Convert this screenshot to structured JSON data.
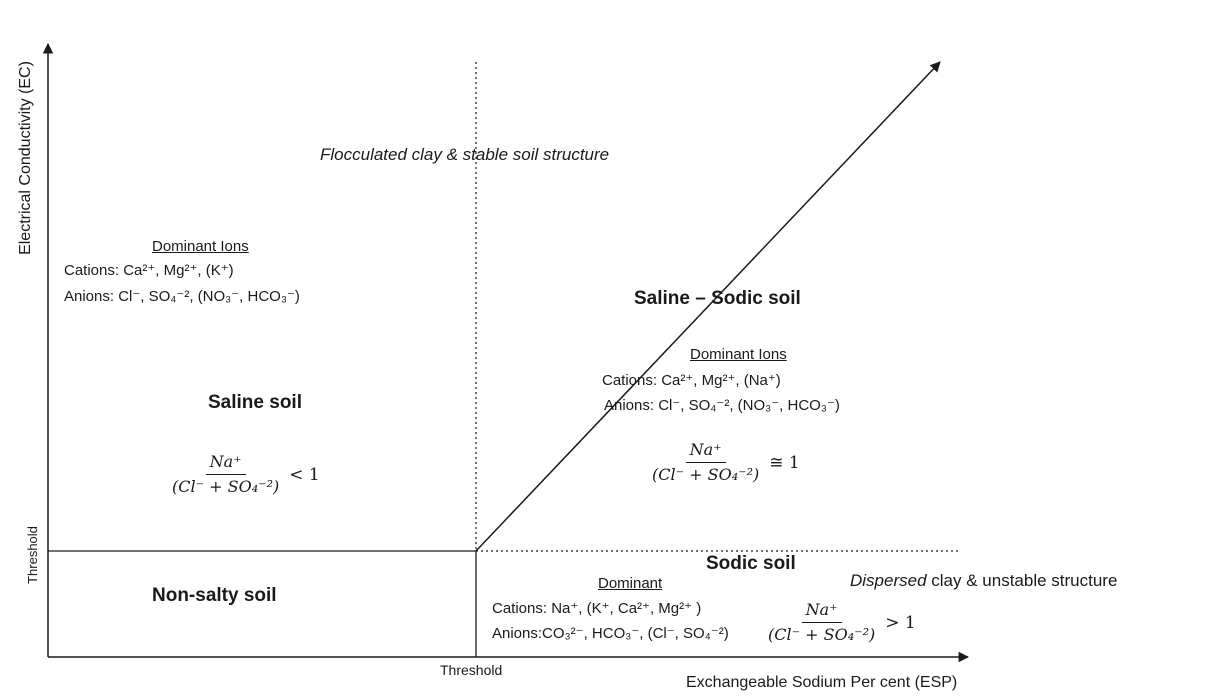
{
  "axes": {
    "y_label": "Electrical Conductivity (EC)",
    "x_label": "Exchangeable Sodium Per cent (ESP)",
    "y_threshold": "Threshold",
    "x_threshold": "Threshold"
  },
  "top_note": "Flocculated clay & stable soil structure",
  "saline": {
    "title": "Saline soil",
    "ions_heading": "Dominant Ions",
    "cations_prefix": "Cations: ",
    "cations_ions": "Ca²⁺, Mg²⁺, (K⁺)",
    "anions_prefix": "Anions: ",
    "anions_ions": "Cl⁻, SO₄⁻², (NO₃⁻, HCO₃⁻)",
    "formula_num": "Na⁺",
    "formula_den": "(Cl⁻ + SO₄⁻²)",
    "formula_rel": "< 1"
  },
  "saline_sodic": {
    "title": "Saline – Sodic  soil",
    "ions_heading": "Dominant Ions",
    "cations_prefix": "Cations: ",
    "cations_ions": "Ca²⁺, Mg²⁺, (Na⁺)",
    "anions_prefix": "Anions: ",
    "anions_ions": "Cl⁻, SO₄⁻², (NO₃⁻, HCO₃⁻)",
    "formula_num": "Na⁺",
    "formula_den": "(Cl⁻ + SO₄⁻²)",
    "formula_rel": "≅ 1"
  },
  "non_salty": {
    "title": "Non-salty soil"
  },
  "sodic": {
    "title": "Sodic soil",
    "note_emph": "Dispersed",
    "note_rest": " clay & unstable structure",
    "ions_heading": "Dominant",
    "cations_prefix": "Cations: ",
    "cations_ions": "Na⁺, (K⁺, Ca²⁺, Mg²⁺ )",
    "anions_prefix": "Anions:",
    "anions_ions": "CO₃²⁻, HCO₃⁻, (Cl⁻, SO₄⁻²)",
    "formula_num": "Na⁺",
    "formula_den": "(Cl⁻ + SO₄⁻²)",
    "formula_rel": "> 1"
  }
}
